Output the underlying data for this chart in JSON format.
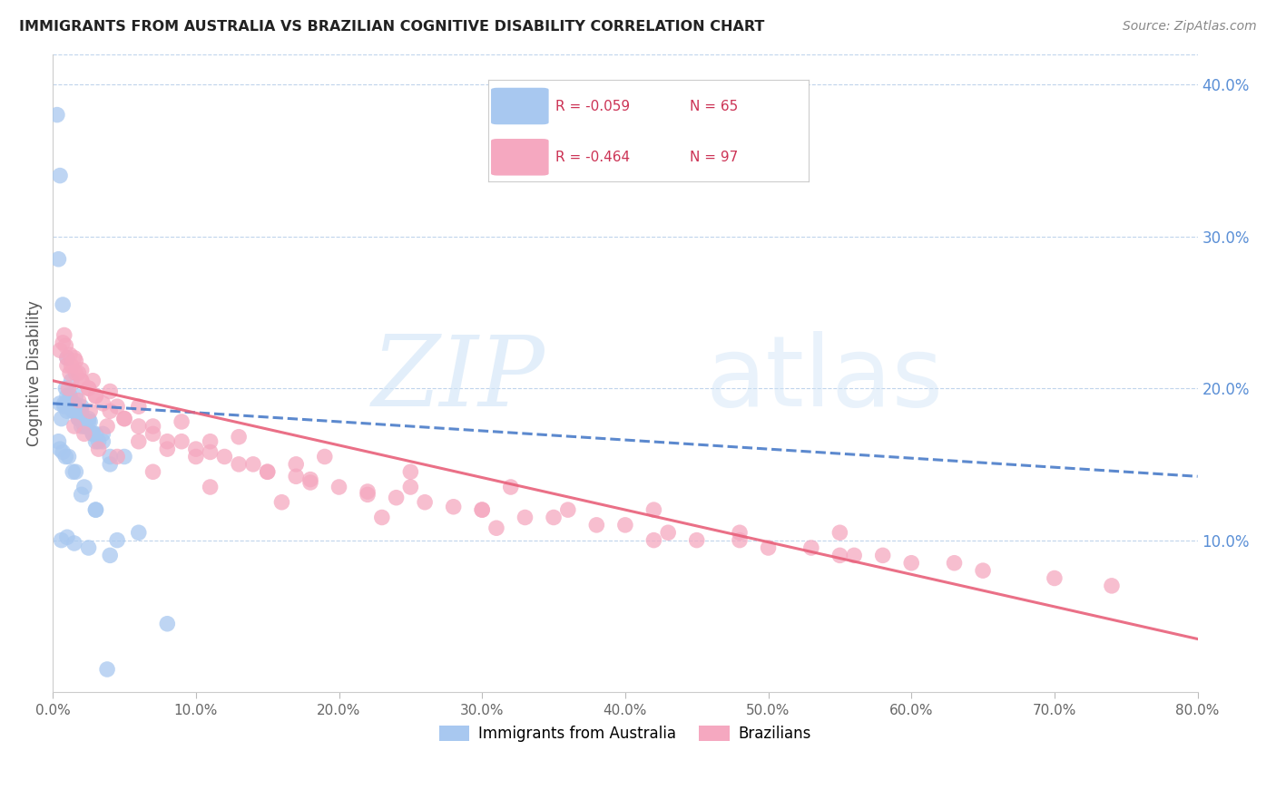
{
  "title": "IMMIGRANTS FROM AUSTRALIA VS BRAZILIAN COGNITIVE DISABILITY CORRELATION CHART",
  "source": "Source: ZipAtlas.com",
  "ylabel": "Cognitive Disability",
  "blue_R": -0.059,
  "blue_N": 65,
  "pink_R": -0.464,
  "pink_N": 97,
  "blue_color": "#a8c8f0",
  "pink_color": "#f5a8c0",
  "blue_line_color": "#4a7cc9",
  "pink_line_color": "#e8607a",
  "background_color": "#ffffff",
  "xlim": [
    0,
    80
  ],
  "ylim": [
    0,
    42
  ],
  "blue_x": [
    0.3,
    0.5,
    0.8,
    1.0,
    1.2,
    1.5,
    1.8,
    2.0,
    2.5,
    3.0,
    0.4,
    0.7,
    1.0,
    1.3,
    1.6,
    2.0,
    2.5,
    3.5,
    0.5,
    0.9,
    1.2,
    1.5,
    1.8,
    2.2,
    2.8,
    3.2,
    0.6,
    1.0,
    1.4,
    1.8,
    2.3,
    3.0,
    4.0,
    0.8,
    1.2,
    1.6,
    2.0,
    2.6,
    3.5,
    5.0,
    1.0,
    1.5,
    2.0,
    2.8,
    4.0,
    0.4,
    0.7,
    1.1,
    1.6,
    2.2,
    3.0,
    4.5,
    0.5,
    0.9,
    1.4,
    2.0,
    3.0,
    6.0,
    0.6,
    1.0,
    1.5,
    2.5,
    4.0,
    8.0,
    3.8
  ],
  "blue_y": [
    38.0,
    34.0,
    19.0,
    18.5,
    19.2,
    18.5,
    18.0,
    17.5,
    18.0,
    16.5,
    28.5,
    25.5,
    22.0,
    20.5,
    19.5,
    18.8,
    17.8,
    17.0,
    19.0,
    20.0,
    19.5,
    19.0,
    18.5,
    17.5,
    17.0,
    16.5,
    18.0,
    19.5,
    18.5,
    18.0,
    17.5,
    17.0,
    15.5,
    18.8,
    19.2,
    18.8,
    18.5,
    17.8,
    16.5,
    15.5,
    19.0,
    18.5,
    18.0,
    17.0,
    15.0,
    16.5,
    15.8,
    15.5,
    14.5,
    13.5,
    12.0,
    10.0,
    16.0,
    15.5,
    14.5,
    13.0,
    12.0,
    10.5,
    10.0,
    10.2,
    9.8,
    9.5,
    9.0,
    4.5,
    1.5
  ],
  "pink_x": [
    0.5,
    0.8,
    1.0,
    1.2,
    1.5,
    1.8,
    2.0,
    2.5,
    3.0,
    4.0,
    5.0,
    6.0,
    8.0,
    10.0,
    12.0,
    15.0,
    18.0,
    22.0,
    26.0,
    30.0,
    35.0,
    40.0,
    45.0,
    50.0,
    55.0,
    60.0,
    65.0,
    70.0,
    0.7,
    1.0,
    1.3,
    1.6,
    2.0,
    2.5,
    3.5,
    5.0,
    7.0,
    9.0,
    11.0,
    14.0,
    17.0,
    20.0,
    24.0,
    28.0,
    33.0,
    38.0,
    43.0,
    48.0,
    53.0,
    58.0,
    0.9,
    1.2,
    1.6,
    2.0,
    2.8,
    4.0,
    6.0,
    9.0,
    13.0,
    19.0,
    25.0,
    32.0,
    42.0,
    55.0,
    1.5,
    2.2,
    3.2,
    4.5,
    7.0,
    11.0,
    16.0,
    23.0,
    31.0,
    42.0,
    56.0,
    1.1,
    1.8,
    2.6,
    3.8,
    6.0,
    10.0,
    15.0,
    22.0,
    30.0,
    8.0,
    13.0,
    18.0,
    3.0,
    4.5,
    7.0,
    11.0,
    17.0,
    25.0,
    36.0,
    48.0,
    63.0,
    74.0
  ],
  "pink_y": [
    22.5,
    23.5,
    21.5,
    21.0,
    22.0,
    21.0,
    20.5,
    20.0,
    19.5,
    18.5,
    18.0,
    17.5,
    16.5,
    16.0,
    15.5,
    14.5,
    14.0,
    13.0,
    12.5,
    12.0,
    11.5,
    11.0,
    10.0,
    9.5,
    9.0,
    8.5,
    8.0,
    7.5,
    23.0,
    22.0,
    21.5,
    21.0,
    20.5,
    20.0,
    19.0,
    18.0,
    17.0,
    16.5,
    15.8,
    15.0,
    14.2,
    13.5,
    12.8,
    12.2,
    11.5,
    11.0,
    10.5,
    10.0,
    9.5,
    9.0,
    22.8,
    22.2,
    21.8,
    21.2,
    20.5,
    19.8,
    18.8,
    17.8,
    16.8,
    15.5,
    14.5,
    13.5,
    12.0,
    10.5,
    17.5,
    17.0,
    16.0,
    15.5,
    14.5,
    13.5,
    12.5,
    11.5,
    10.8,
    10.0,
    9.0,
    20.0,
    19.2,
    18.5,
    17.5,
    16.5,
    15.5,
    14.5,
    13.2,
    12.0,
    16.0,
    15.0,
    13.8,
    19.5,
    18.8,
    17.5,
    16.5,
    15.0,
    13.5,
    12.0,
    10.5,
    8.5,
    7.0
  ]
}
